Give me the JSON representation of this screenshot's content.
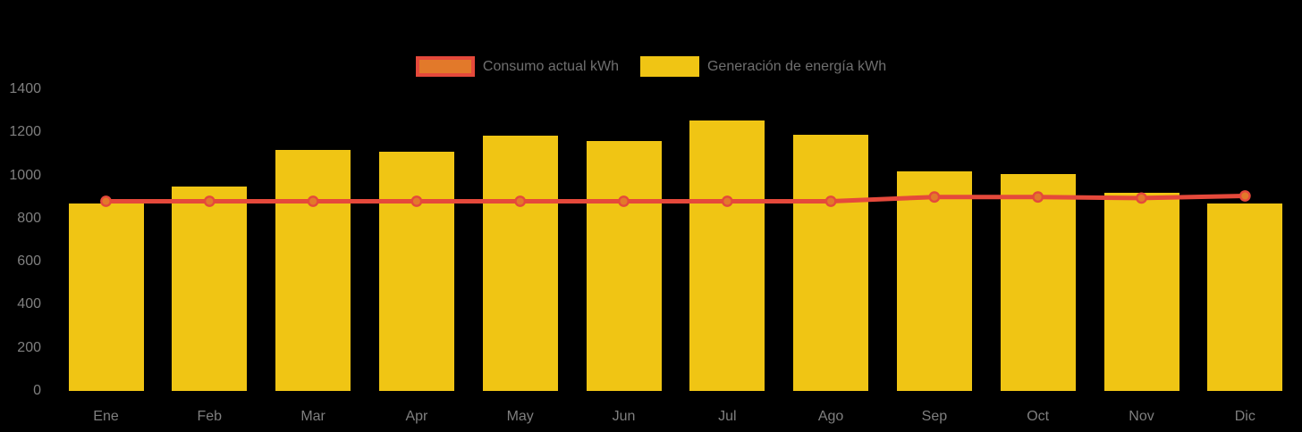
{
  "colors": {
    "background": "#000000",
    "bar": "#F0C514",
    "line": "#E5493B",
    "marker_fill": "#E2792A",
    "axis_label": "#7F7F7F",
    "legend_text": "#6F6F6F"
  },
  "legend": {
    "items": [
      {
        "label": "Consumo actual kWh",
        "swatch": "orange-box-red-border"
      },
      {
        "label": "Generación de energía kWh",
        "swatch": "yellow-box"
      }
    ]
  },
  "chart_data": {
    "type": "bar",
    "title": "",
    "xlabel": "",
    "ylabel": "",
    "categories": [
      "Ene",
      "Feb",
      "Mar",
      "Apr",
      "May",
      "Jun",
      "Jul",
      "Ago",
      "Sep",
      "Oct",
      "Nov",
      "Dic"
    ],
    "series": [
      {
        "name": "Consumo actual kWh",
        "kind": "line",
        "values": [
          880,
          880,
          880,
          880,
          880,
          880,
          880,
          880,
          900,
          900,
          895,
          905
        ]
      },
      {
        "name": "Generación de energía kWh",
        "kind": "bar",
        "values": [
          870,
          950,
          1120,
          1110,
          1185,
          1160,
          1255,
          1190,
          1020,
          1005,
          920,
          870
        ]
      }
    ],
    "ylim": [
      0,
      1400
    ],
    "yticks": [
      0,
      200,
      400,
      600,
      800,
      1000,
      1200,
      1400
    ],
    "grid": false,
    "legend_position": "top-center"
  }
}
